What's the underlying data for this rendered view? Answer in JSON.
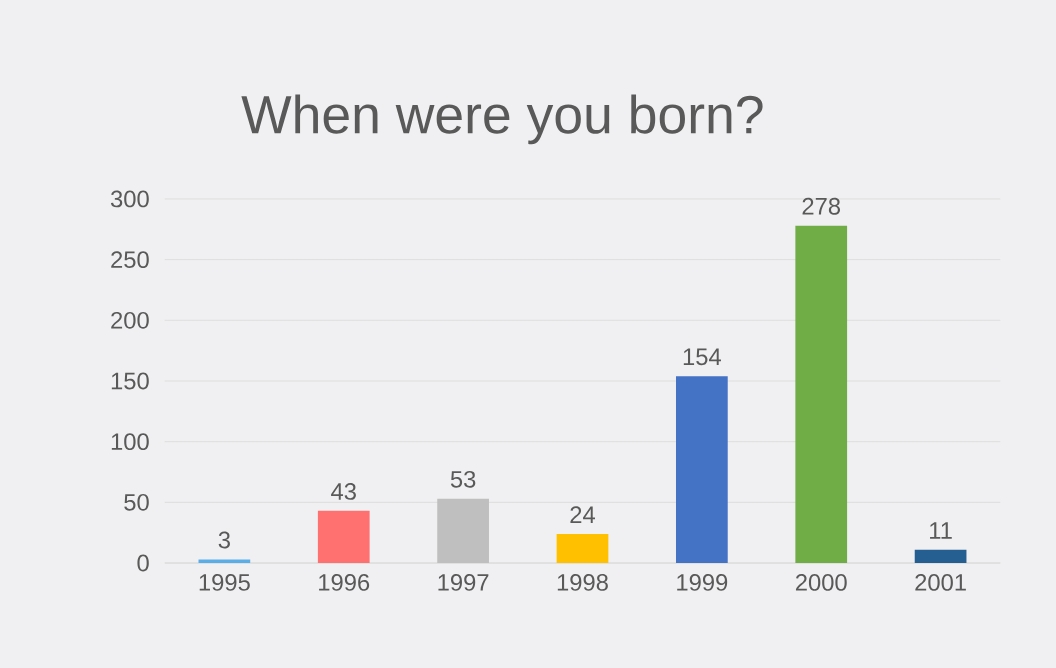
{
  "chart_data": {
    "type": "bar",
    "title": "When were you born?",
    "categories": [
      "1995",
      "1996",
      "1997",
      "1998",
      "1999",
      "2000",
      "2001"
    ],
    "values": [
      3,
      43,
      53,
      24,
      154,
      278,
      11
    ],
    "colors": [
      "#5aaee8",
      "#ff7070",
      "#bfbfbf",
      "#ffc000",
      "#4472c4",
      "#70ad47",
      "#255e91"
    ],
    "ylim": [
      0,
      300
    ],
    "yticks": [
      0,
      50,
      100,
      150,
      200,
      250,
      300
    ],
    "grid": "y",
    "data_labels": true
  }
}
